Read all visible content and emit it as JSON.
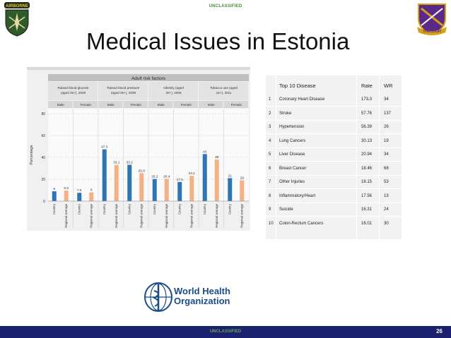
{
  "classification_top": "UNCLASSIFIED",
  "classification_bottom": "UNCLASSIFIED",
  "page_number": "26",
  "title": "Medical Issues in Estonia",
  "logos": {
    "left_text": "AIRBORNE",
    "right_text": "THROUGH",
    "who_line1": "World Health",
    "who_line2": "Organization"
  },
  "colors": {
    "country_bar": "#2e75b6",
    "regional_bar": "#f4b183",
    "footer": "#1a1f6e",
    "classification": "#4a8a3a"
  },
  "chart_data": {
    "type": "bar",
    "title": "Adult risk factors",
    "ylabel": "Percentage",
    "ylim": [
      0,
      80
    ],
    "yticks": [
      "0",
      "20",
      "40",
      "60",
      "80"
    ],
    "groups": [
      {
        "label": "Raised blood glucose (aged 25+), 2008",
        "sexes": [
          "Male",
          "Female"
        ],
        "country": [
          9,
          7.6
        ],
        "regional": [
          9.6,
          8
        ]
      },
      {
        "label": "Raised blood pressure (aged 25+), 2008",
        "sexes": [
          "Male",
          "Female"
        ],
        "country": [
          47.3,
          33.2
        ],
        "regional": [
          33.1,
          25.6
        ]
      },
      {
        "label": "Obesity (aged 20+), 2008",
        "sexes": [
          "Male",
          "Female"
        ],
        "country": [
          20.2,
          17.5
        ],
        "regional": [
          20.4,
          23.1
        ]
      },
      {
        "label": "Tobacco use (aged 15+), 2011",
        "sexes": [
          "Male",
          "Female"
        ],
        "country": [
          43,
          21
        ],
        "regional": [
          38,
          19
        ]
      }
    ],
    "bar_labels": [
      "9",
      "9.6",
      "7.6",
      "8",
      "47.3",
      "33.1",
      "33.2",
      "25.6",
      "20.2",
      "20.4",
      "17.5",
      "23.1",
      "43",
      "38",
      "21",
      "19"
    ],
    "x_tick_labels": [
      "Country",
      "Regional average"
    ]
  },
  "table": {
    "headers": [
      "Top 10 Disease",
      "Rate",
      "WR"
    ],
    "rows": [
      {
        "n": "1",
        "disease": "Coronary Heart Disease",
        "rate": "173.3",
        "wr": "34"
      },
      {
        "n": "2",
        "disease": "Stroke",
        "rate": "57.76",
        "wr": "137"
      },
      {
        "n": "3",
        "disease": "Hypertension",
        "rate": "56.39",
        "wr": "26"
      },
      {
        "n": "4",
        "disease": "Lung Cancers",
        "rate": "30.13",
        "wr": "19"
      },
      {
        "n": "5",
        "disease": "Liver Disease",
        "rate": "20.94",
        "wr": "34"
      },
      {
        "n": "6",
        "disease": "Breast Cancer",
        "rate": "18.46",
        "wr": "68"
      },
      {
        "n": "7",
        "disease": "Other Injuries",
        "rate": "18.15",
        "wr": "53"
      },
      {
        "n": "8",
        "disease": "Inflammatory/Heart",
        "rate": "17.56",
        "wr": "13"
      },
      {
        "n": "9",
        "disease": "Suicide",
        "rate": "16.31",
        "wr": "24"
      },
      {
        "n": "10",
        "disease": "Colon-Rectum Cancers",
        "rate": "16.01",
        "wr": "30"
      }
    ]
  }
}
